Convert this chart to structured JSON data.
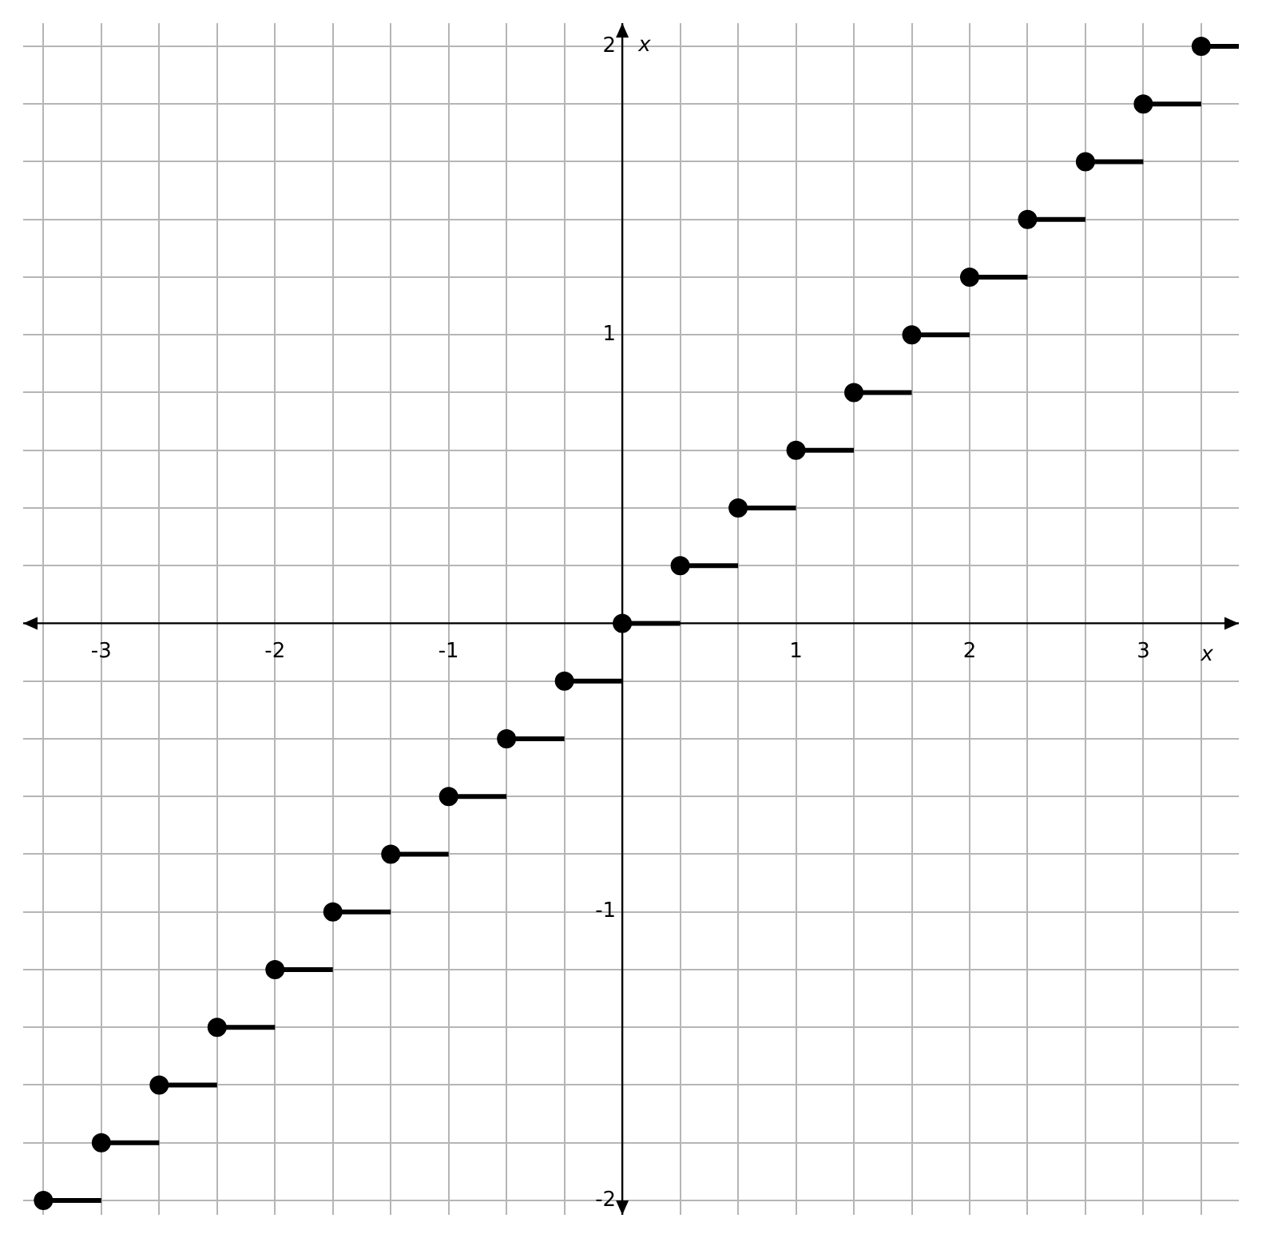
{
  "chart_data": {
    "type": "step",
    "xlabel": "x",
    "ylabel": "x",
    "marker": "circle",
    "grid": true,
    "xlim": [
      -3.45,
      3.55
    ],
    "ylim": [
      -2.05,
      2.08
    ],
    "xticks": [
      {
        "value": -3.3333,
        "label": null
      },
      -3,
      {
        "value": -2.6667,
        "label": null
      },
      {
        "value": -2.3333,
        "label": null
      },
      -2,
      {
        "value": -1.6667,
        "label": null
      },
      {
        "value": -1.3333,
        "label": null
      },
      -1,
      {
        "value": -0.6667,
        "label": null
      },
      {
        "value": -0.3333,
        "label": null
      },
      {
        "value": 0,
        "label": null
      },
      {
        "value": 0.3333,
        "label": null
      },
      {
        "value": 0.6667,
        "label": null
      },
      1,
      {
        "value": 1.3333,
        "label": null
      },
      {
        "value": 1.6667,
        "label": null
      },
      2,
      {
        "value": 2.3333,
        "label": null
      },
      {
        "value": 2.6667,
        "label": null
      },
      3,
      {
        "value": 3.3333,
        "label": null
      }
    ],
    "yticks": [
      -2,
      {
        "value": -1.8,
        "label": null
      },
      {
        "value": -1.6,
        "label": null
      },
      {
        "value": -1.4,
        "label": null
      },
      {
        "value": -1.2,
        "label": null
      },
      -1,
      {
        "value": -0.8,
        "label": null
      },
      {
        "value": -0.6,
        "label": null
      },
      {
        "value": -0.4,
        "label": null
      },
      {
        "value": -0.2,
        "label": null
      },
      {
        "value": 0,
        "label": null
      },
      {
        "value": 0.2,
        "label": null
      },
      {
        "value": 0.4,
        "label": null
      },
      {
        "value": 0.6,
        "label": null
      },
      {
        "value": 0.8,
        "label": null
      },
      1,
      {
        "value": 1.2,
        "label": null
      },
      {
        "value": 1.4,
        "label": null
      },
      {
        "value": 1.6,
        "label": null
      },
      {
        "value": 1.8,
        "label": null
      },
      2
    ],
    "series": [
      {
        "color": "#000000",
        "x": [
          -3.3333,
          -3,
          -2.6667,
          -2.3333,
          -2,
          -1.6667,
          -1.3333,
          -1,
          -0.6667,
          -0.3333,
          0,
          0.3333,
          0.6667,
          1,
          1.3333,
          1.6667,
          2,
          2.3333,
          2.6667,
          3,
          3.3333,
          3.55
        ],
        "values": [
          -2,
          -1.8,
          -1.6,
          -1.4,
          -1.2,
          -1,
          -0.8,
          -0.6,
          -0.4,
          -0.2,
          0,
          0.2,
          0.4,
          0.6,
          0.8,
          1,
          1.2,
          1.4,
          1.6,
          1.8,
          2,
          2
        ]
      }
    ]
  }
}
